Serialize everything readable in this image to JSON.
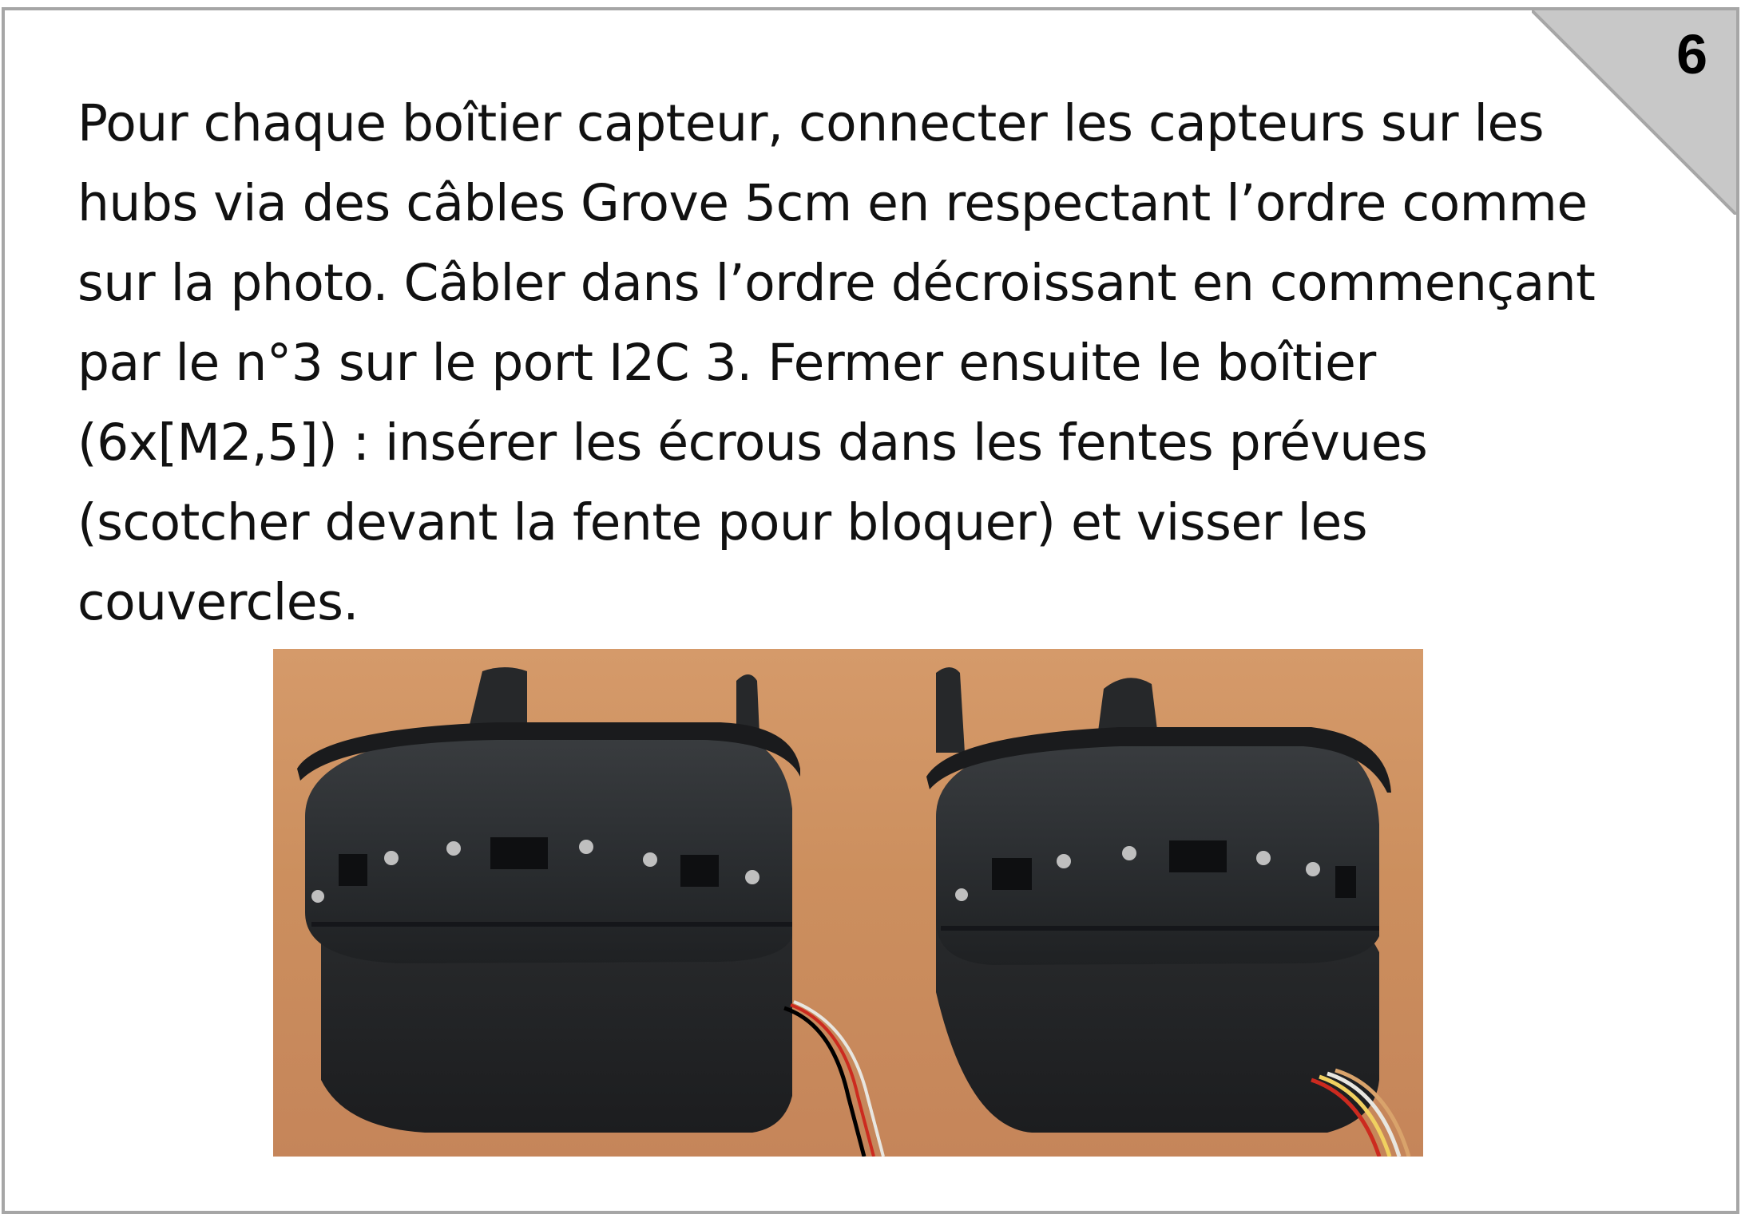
{
  "step": {
    "number": "6"
  },
  "instructions": {
    "text": "Pour chaque boîtier capteur, connecter les capteurs sur les hubs via des câbles Grove 5cm en respectant l’ordre comme sur la photo. Câbler dans l’ordre décroissant en commençant par le n°3 sur le port I2C 3. Fermer ensuite le boîtier (6x[M2,5]) : insérer les écrous dans les fentes prévues (scotcher devant la fente pour bloquer) et visser les couvercles."
  },
  "colors": {
    "border": "#a6a6a6",
    "corner_tab": "#c8c8c8",
    "table_wood": "#cc8f5e",
    "housing": "#2a2c2e"
  },
  "photo": {
    "subject": "two assembled sensor housings"
  }
}
